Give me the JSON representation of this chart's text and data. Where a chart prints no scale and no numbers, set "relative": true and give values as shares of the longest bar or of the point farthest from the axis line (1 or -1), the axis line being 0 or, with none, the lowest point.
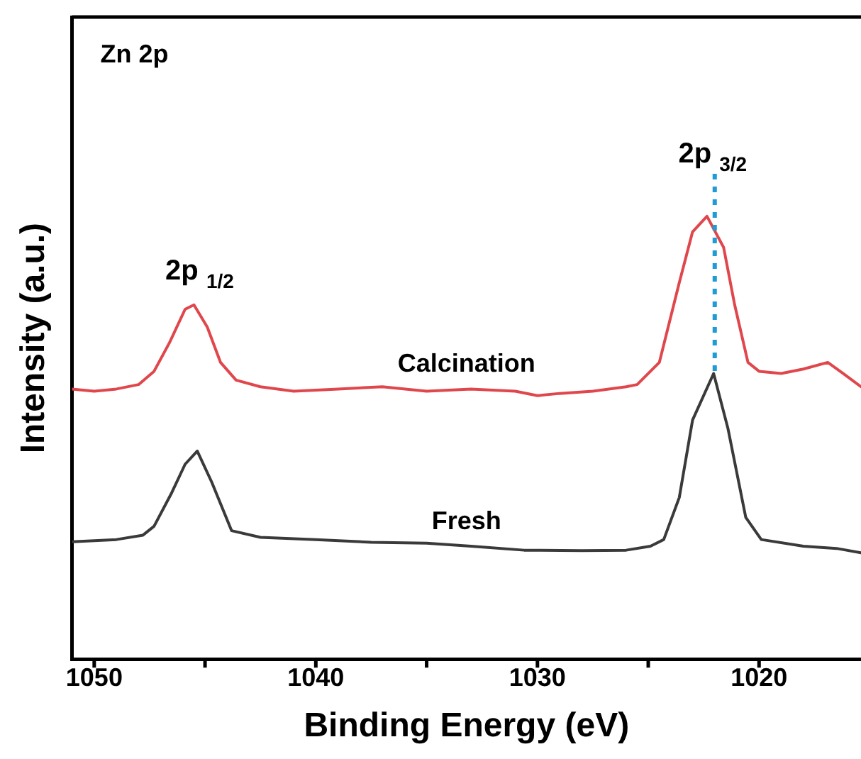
{
  "chart_data": {
    "type": "line",
    "relative": true,
    "xlabel": "Binding Energy (eV)",
    "ylabel": "Intensity (a.u.)",
    "xlim": [
      1051,
      1015.4
    ],
    "xticks": [
      1050,
      {
        "value": 1045,
        "label": null
      },
      1040,
      {
        "value": 1035,
        "label": null
      },
      1030,
      {
        "value": 1025,
        "label": null
      },
      1020
    ],
    "grid": false,
    "legend": false,
    "marker": "none",
    "line_style": "solid",
    "annotations": [
      "Zn 2p",
      {
        "text": "2p $_{1/2}$",
        "x": 1045.5,
        "y": 0.8
      },
      {
        "text": "2p $_{3/2}$",
        "x": 1022.35,
        "y": 1
      }
    ],
    "ref_lines": [
      {
        "axis": "x",
        "value": 1022,
        "color": "#1f9bd6",
        "line_style": "dotted"
      }
    ],
    "series": [
      {
        "name": "Calcination",
        "color": "#e0474c",
        "x": [
          1051,
          1050,
          1049,
          1048,
          1047.3,
          1046.6,
          1045.9,
          1045.5,
          1044.9,
          1044.3,
          1043.6,
          1042.5,
          1041,
          1039,
          1037,
          1035,
          1033,
          1031,
          1030,
          1029,
          1027.5,
          1026,
          1025.5,
          1024.5,
          1023.6,
          1023,
          1022.35,
          1021.6,
          1021.1,
          1020.5,
          1020,
          1019,
          1018,
          1016.9,
          1016.2,
          1015.4
        ],
        "values": [
          0.61,
          0.605,
          0.61,
          0.62,
          0.65,
          0.715,
          0.79,
          0.8,
          0.75,
          0.67,
          0.63,
          0.615,
          0.605,
          0.61,
          0.615,
          0.605,
          0.61,
          0.605,
          0.595,
          0.6,
          0.605,
          0.615,
          0.62,
          0.67,
          0.85,
          0.965,
          1,
          0.93,
          0.8,
          0.67,
          0.65,
          0.645,
          0.655,
          0.67,
          0.645,
          0.615
        ]
      },
      {
        "name": "Fresh",
        "color": "#3a3a3a",
        "x": [
          1051,
          1049,
          1047.8,
          1047.3,
          1046.5,
          1045.9,
          1045.35,
          1044.7,
          1043.8,
          1042.5,
          1040,
          1037.5,
          1035,
          1033,
          1030.6,
          1028,
          1026,
          1024.9,
          1024.3,
          1023.6,
          1023,
          1022.05,
          1021.4,
          1020.6,
          1019.9,
          1018,
          1016.5,
          1015.4
        ],
        "values": [
          0.265,
          0.27,
          0.28,
          0.3,
          0.376,
          0.44,
          0.47,
          0.4,
          0.29,
          0.275,
          0.27,
          0.264,
          0.262,
          0.255,
          0.246,
          0.245,
          0.246,
          0.255,
          0.27,
          0.365,
          0.54,
          0.645,
          0.52,
          0.32,
          0.27,
          0.255,
          0.25,
          0.24
        ]
      }
    ]
  }
}
